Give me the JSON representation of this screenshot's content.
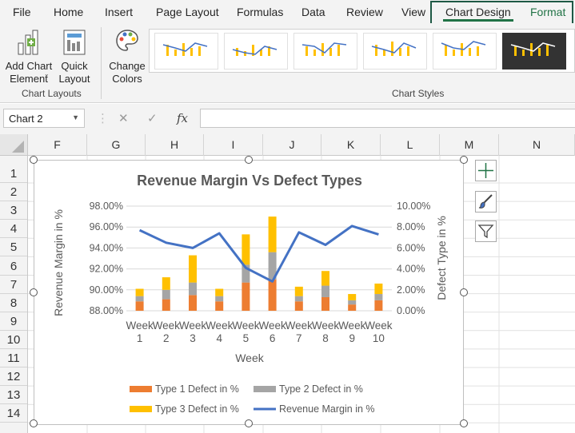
{
  "ribbon_tabs": [
    "File",
    "Home",
    "Insert",
    "Page Layout",
    "Formulas",
    "Data",
    "Review",
    "View",
    "Chart Design",
    "Format"
  ],
  "ribbon": {
    "add_chart_element": "Add Chart Element",
    "quick_layout": "Quick Layout",
    "change_colors": "Change Colors",
    "chart_layouts_label": "Chart Layouts",
    "chart_styles_label": "Chart Styles"
  },
  "formula_bar": {
    "name_box": "Chart 2",
    "fx_symbol": "fx",
    "formula": ""
  },
  "columns": [
    "F",
    "G",
    "H",
    "I",
    "J",
    "K",
    "L",
    "M",
    "N"
  ],
  "rows": [
    "1",
    "2",
    "3",
    "4",
    "5",
    "6",
    "7",
    "8",
    "9",
    "10",
    "11",
    "12",
    "13",
    "14"
  ],
  "colors": {
    "type1": "#ed7d31",
    "type2": "#a5a5a5",
    "type3": "#ffc000",
    "line": "#4472c4",
    "excel_green": "#217346"
  },
  "chart_data": {
    "type": "bar",
    "title": "Revenue Margin Vs Defect Types",
    "xlabel": "Week",
    "ylabel": "Revenue Margin in %",
    "y2label": "Defect Type in %",
    "categories": [
      "Week 1",
      "Week 2",
      "Week 3",
      "Week 4",
      "Week 5",
      "Week 6",
      "Week 7",
      "Week 8",
      "Week 9",
      "Week 10"
    ],
    "series": [
      {
        "name": "Type 1 Defect in %",
        "kind": "stacked-bar",
        "axis": "secondary",
        "values": [
          0.9,
          1.1,
          1.5,
          0.9,
          2.7,
          3.0,
          0.9,
          1.3,
          0.6,
          1.0
        ]
      },
      {
        "name": "Type 2 Defect in %",
        "kind": "stacked-bar",
        "axis": "secondary",
        "values": [
          0.5,
          0.9,
          1.2,
          0.5,
          1.7,
          2.6,
          0.5,
          1.1,
          0.4,
          0.6
        ]
      },
      {
        "name": "Type 3 Defect in %",
        "kind": "stacked-bar",
        "axis": "secondary",
        "values": [
          0.7,
          1.2,
          2.6,
          0.7,
          2.9,
          3.4,
          0.9,
          1.4,
          0.6,
          1.0
        ]
      },
      {
        "name": "Revenue Margin in %",
        "kind": "line",
        "axis": "primary",
        "values": [
          95.7,
          94.5,
          94.0,
          95.4,
          92.1,
          90.8,
          95.5,
          94.3,
          96.1,
          95.3
        ]
      }
    ],
    "ylim": [
      88,
      98
    ],
    "y_ticks": [
      "98.00%",
      "96.00%",
      "94.00%",
      "92.00%",
      "90.00%",
      "88.00%"
    ],
    "y2lim": [
      0,
      10
    ],
    "y2_ticks": [
      "10.00%",
      "8.00%",
      "6.00%",
      "4.00%",
      "2.00%",
      "0.00%"
    ],
    "legend_position": "bottom",
    "grid": true
  }
}
